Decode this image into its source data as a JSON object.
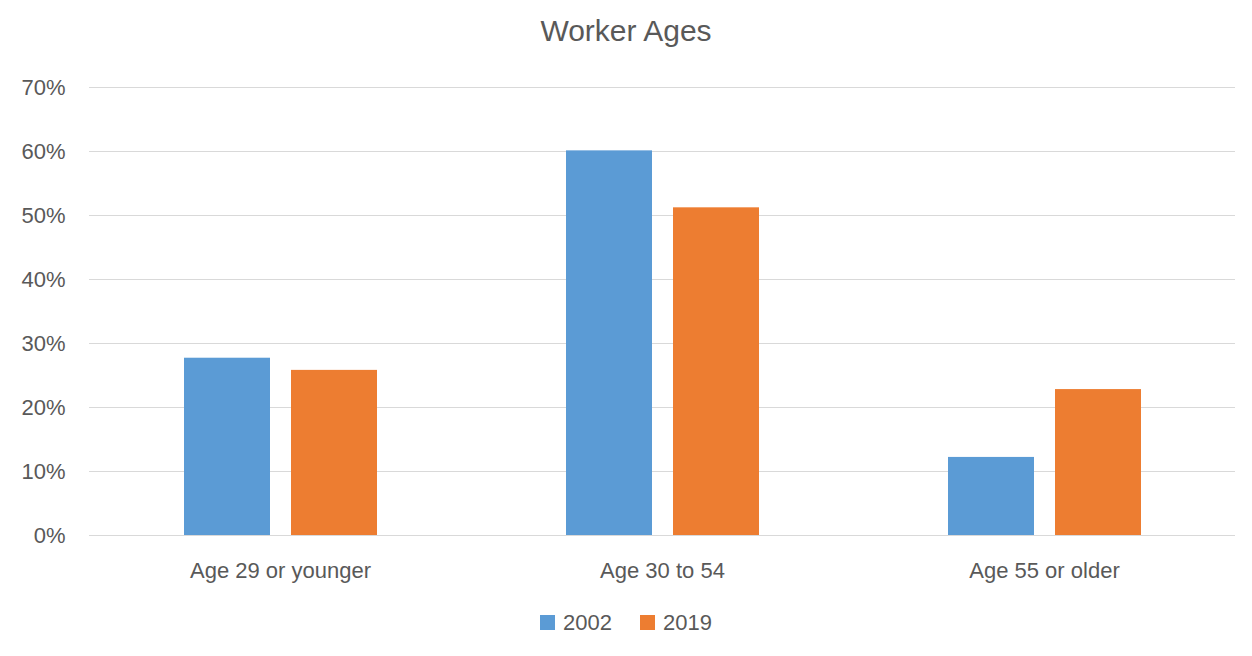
{
  "chart_data": {
    "type": "bar",
    "title": "Worker Ages",
    "categories": [
      "Age 29 or younger",
      "Age 30 to 54",
      "Age 55 or older"
    ],
    "series": [
      {
        "name": "2002",
        "color": "#5b9bd5",
        "values": [
          27.7,
          60.1,
          12.2
        ]
      },
      {
        "name": "2019",
        "color": "#ed7d31",
        "values": [
          25.8,
          51.2,
          22.8
        ]
      }
    ],
    "ylim": [
      0,
      70
    ],
    "yticks": [
      {
        "value": 0,
        "label": "0%"
      },
      {
        "value": 10,
        "label": "10%"
      },
      {
        "value": 20,
        "label": "20%"
      },
      {
        "value": 30,
        "label": "30%"
      },
      {
        "value": 40,
        "label": "40%"
      },
      {
        "value": 50,
        "label": "50%"
      },
      {
        "value": 60,
        "label": "60%"
      },
      {
        "value": 70,
        "label": "70%"
      }
    ],
    "grid": true,
    "legend": "bottom"
  }
}
